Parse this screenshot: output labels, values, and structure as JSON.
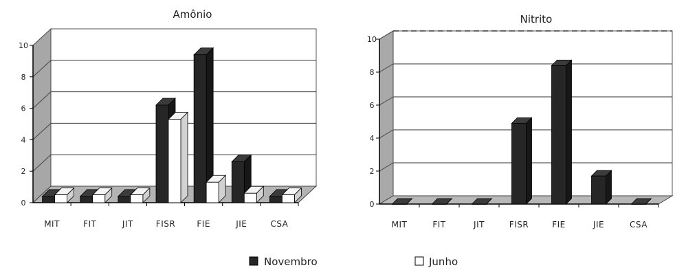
{
  "chart_data": [
    {
      "type": "bar",
      "title": "Amônio",
      "categories": [
        "MIT",
        "FIT",
        "JIT",
        "FISR",
        "FIE",
        "JIE",
        "CSA"
      ],
      "y_ticks": [
        "0",
        "2",
        "4",
        "6",
        "8",
        "10"
      ],
      "ylim": [
        0,
        10
      ],
      "grid": true,
      "series": [
        {
          "name": "Novembro",
          "color": "#262626",
          "values": [
            0.4,
            0.4,
            0.4,
            6.2,
            9.4,
            2.6,
            0.4
          ]
        },
        {
          "name": "Junho",
          "color": "#ffffff",
          "values": [
            0.5,
            0.5,
            0.5,
            5.3,
            1.3,
            0.6,
            0.5
          ]
        }
      ]
    },
    {
      "type": "bar",
      "title": "Nitrito",
      "categories": [
        "MIT",
        "FIT",
        "JIT",
        "FISR",
        "FIE",
        "JIE",
        "CSA"
      ],
      "y_ticks": [
        "0",
        "2",
        "4",
        "6",
        "8",
        "10"
      ],
      "ylim": [
        0,
        10
      ],
      "grid": true,
      "series": [
        {
          "name": "Novembro",
          "color": "#262626",
          "values": [
            0,
            0,
            0,
            4.9,
            8.4,
            1.7,
            0
          ]
        }
      ]
    }
  ],
  "legend": [
    {
      "label": "Novembro",
      "color": "#262626"
    },
    {
      "label": "Junho",
      "color": "#ffffff"
    }
  ]
}
